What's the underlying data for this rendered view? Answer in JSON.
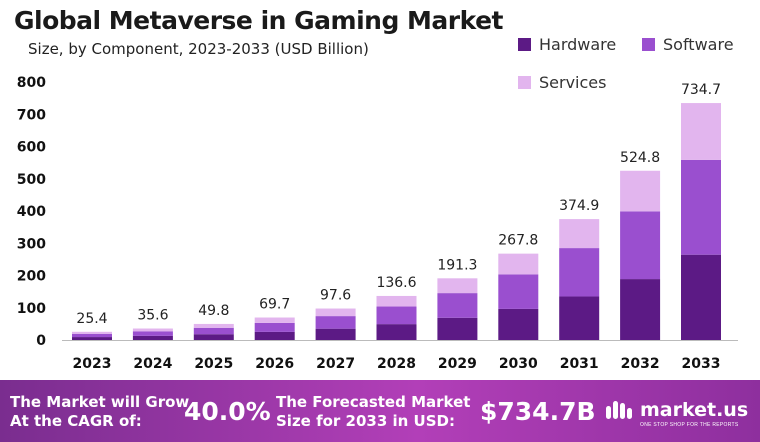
{
  "title": "Global Metaverse in Gaming Market",
  "subtitle": "Size, by Component, 2023-2033 (USD Billion)",
  "colors": {
    "hardware": "#5c1a85",
    "software": "#9a4fcf",
    "services": "#e2b5ee"
  },
  "chart_data": {
    "type": "bar",
    "stacked": true,
    "categories": [
      "2023",
      "2024",
      "2025",
      "2026",
      "2027",
      "2028",
      "2029",
      "2030",
      "2031",
      "2032",
      "2033"
    ],
    "series": [
      {
        "name": "Hardware",
        "values": [
          9.1,
          12.8,
          17.9,
          25.1,
          35.1,
          49.2,
          68.9,
          96.4,
          135.0,
          188.9,
          264.5
        ]
      },
      {
        "name": "Software",
        "values": [
          10.1,
          14.2,
          19.9,
          27.9,
          39.0,
          54.6,
          76.5,
          107.1,
          150.0,
          209.9,
          293.9
        ]
      },
      {
        "name": "Services",
        "values": [
          6.2,
          8.6,
          12.0,
          16.7,
          23.5,
          32.8,
          45.9,
          64.3,
          89.9,
          126.0,
          176.3
        ]
      }
    ],
    "totals": [
      "25.4",
      "35.6",
      "49.8",
      "69.7",
      "97.6",
      "136.6",
      "191.3",
      "267.8",
      "374.9",
      "524.8",
      "734.7"
    ],
    "yticks": [
      "0",
      "100",
      "200",
      "300",
      "400",
      "500",
      "600",
      "700",
      "800"
    ],
    "ylim": [
      0,
      800
    ],
    "legend": [
      "Hardware",
      "Software",
      "Services"
    ],
    "legend_position": "top-right",
    "grid": false
  },
  "footer": {
    "cagr_label_line1": "The Market will Grow",
    "cagr_label_line2": "At the CAGR of:",
    "cagr_value": "40.0%",
    "forecast_label_line1": "The Forecasted Market",
    "forecast_label_line2": "Size for 2033 in USD:",
    "forecast_value": "$734.7B",
    "brand": "market.us",
    "tagline": "ONE STOP SHOP FOR THE REPORTS"
  }
}
